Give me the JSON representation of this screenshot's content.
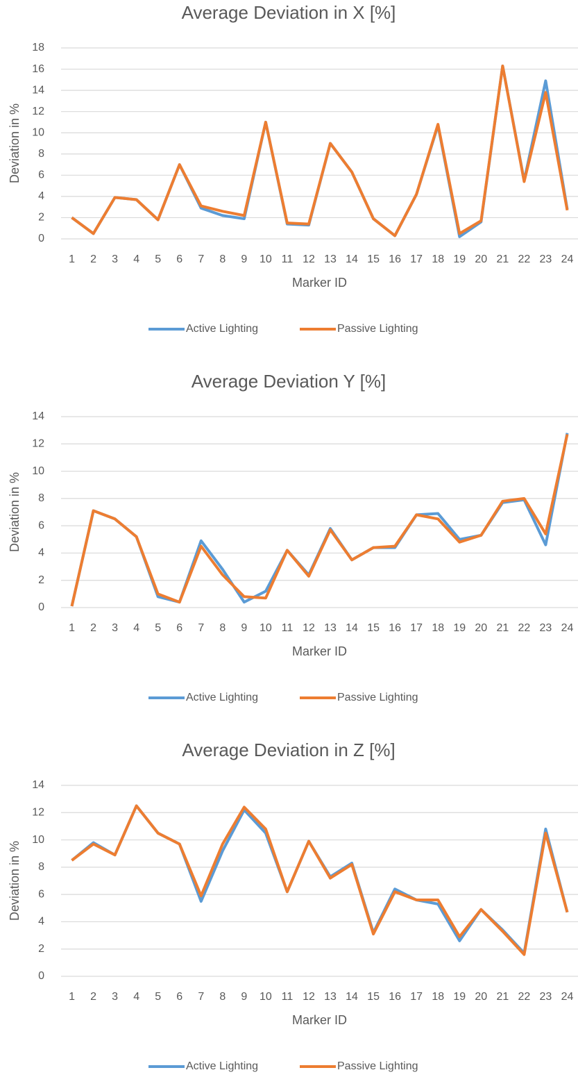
{
  "chart_data": [
    {
      "type": "line",
      "title": "Average Deviation in X [%]",
      "x_label": "Marker ID",
      "y_label": "Deviation in %",
      "categories": [
        "1",
        "2",
        "3",
        "4",
        "5",
        "6",
        "7",
        "8",
        "9",
        "10",
        "11",
        "12",
        "13",
        "14",
        "15",
        "16",
        "17",
        "18",
        "19",
        "20",
        "21",
        "22",
        "23",
        "24"
      ],
      "series": [
        {
          "name": "Active Lighting",
          "color": "#5b9bd5",
          "values": [
            2.0,
            0.5,
            3.9,
            3.7,
            1.8,
            7.0,
            2.9,
            2.2,
            1.9,
            11.0,
            1.4,
            1.3,
            9.0,
            6.3,
            1.9,
            0.3,
            4.2,
            10.7,
            0.2,
            1.6,
            16.3,
            5.5,
            14.9,
            2.8
          ]
        },
        {
          "name": "Passive Lighting",
          "color": "#ed7d31",
          "values": [
            2.0,
            0.5,
            3.9,
            3.7,
            1.8,
            7.0,
            3.1,
            2.6,
            2.2,
            11.0,
            1.5,
            1.4,
            9.0,
            6.3,
            1.9,
            0.3,
            4.2,
            10.8,
            0.5,
            1.7,
            16.3,
            5.4,
            13.8,
            2.7
          ]
        }
      ],
      "ylim": [
        0,
        18
      ],
      "yticks": [
        0,
        2,
        4,
        6,
        8,
        10,
        12,
        14,
        16,
        18
      ],
      "grid": true,
      "legend": "bottom"
    },
    {
      "type": "line",
      "title": "Average Deviation Y [%]",
      "x_label": "Marker ID",
      "y_label": "Deviation in %",
      "categories": [
        "1",
        "2",
        "3",
        "4",
        "5",
        "6",
        "7",
        "8",
        "9",
        "10",
        "11",
        "12",
        "13",
        "14",
        "15",
        "16",
        "17",
        "18",
        "19",
        "20",
        "21",
        "22",
        "23",
        "24"
      ],
      "series": [
        {
          "name": "Active Lighting",
          "color": "#5b9bd5",
          "values": [
            0.1,
            7.1,
            6.5,
            5.2,
            0.8,
            0.4,
            4.9,
            2.8,
            0.4,
            1.2,
            4.2,
            2.4,
            5.8,
            3.5,
            4.4,
            4.4,
            6.8,
            6.9,
            5.0,
            5.3,
            7.7,
            7.9,
            4.6,
            12.8
          ]
        },
        {
          "name": "Passive Lighting",
          "color": "#ed7d31",
          "values": [
            0.1,
            7.1,
            6.5,
            5.2,
            1.0,
            0.4,
            4.5,
            2.4,
            0.8,
            0.7,
            4.2,
            2.3,
            5.7,
            3.5,
            4.4,
            4.5,
            6.8,
            6.5,
            4.8,
            5.3,
            7.8,
            8.0,
            5.4,
            12.7
          ]
        }
      ],
      "ylim": [
        0,
        14
      ],
      "yticks": [
        0,
        2,
        4,
        6,
        8,
        10,
        12,
        14
      ],
      "grid": true,
      "legend": "bottom"
    },
    {
      "type": "line",
      "title": "Average Deviation in Z [%]",
      "x_label": "Marker ID",
      "y_label": "Deviation in %",
      "categories": [
        "1",
        "2",
        "3",
        "4",
        "5",
        "6",
        "7",
        "8",
        "9",
        "10",
        "11",
        "12",
        "13",
        "14",
        "15",
        "16",
        "17",
        "18",
        "19",
        "20",
        "21",
        "22",
        "23",
        "24"
      ],
      "series": [
        {
          "name": "Active Lighting",
          "color": "#5b9bd5",
          "values": [
            8.5,
            9.8,
            8.9,
            12.5,
            10.5,
            9.7,
            5.5,
            9.2,
            12.2,
            10.5,
            6.2,
            9.9,
            7.3,
            8.3,
            3.2,
            6.4,
            5.6,
            5.3,
            2.6,
            4.9,
            3.4,
            1.7,
            10.8,
            4.7
          ]
        },
        {
          "name": "Passive Lighting",
          "color": "#ed7d31",
          "values": [
            8.5,
            9.7,
            8.9,
            12.5,
            10.5,
            9.7,
            5.9,
            9.7,
            12.4,
            10.8,
            6.2,
            9.9,
            7.2,
            8.2,
            3.1,
            6.2,
            5.6,
            5.6,
            2.9,
            4.9,
            3.3,
            1.6,
            10.5,
            4.7
          ]
        }
      ],
      "ylim": [
        0,
        14
      ],
      "yticks": [
        0,
        2,
        4,
        6,
        8,
        10,
        12,
        14
      ],
      "grid": true,
      "legend": "bottom"
    }
  ]
}
